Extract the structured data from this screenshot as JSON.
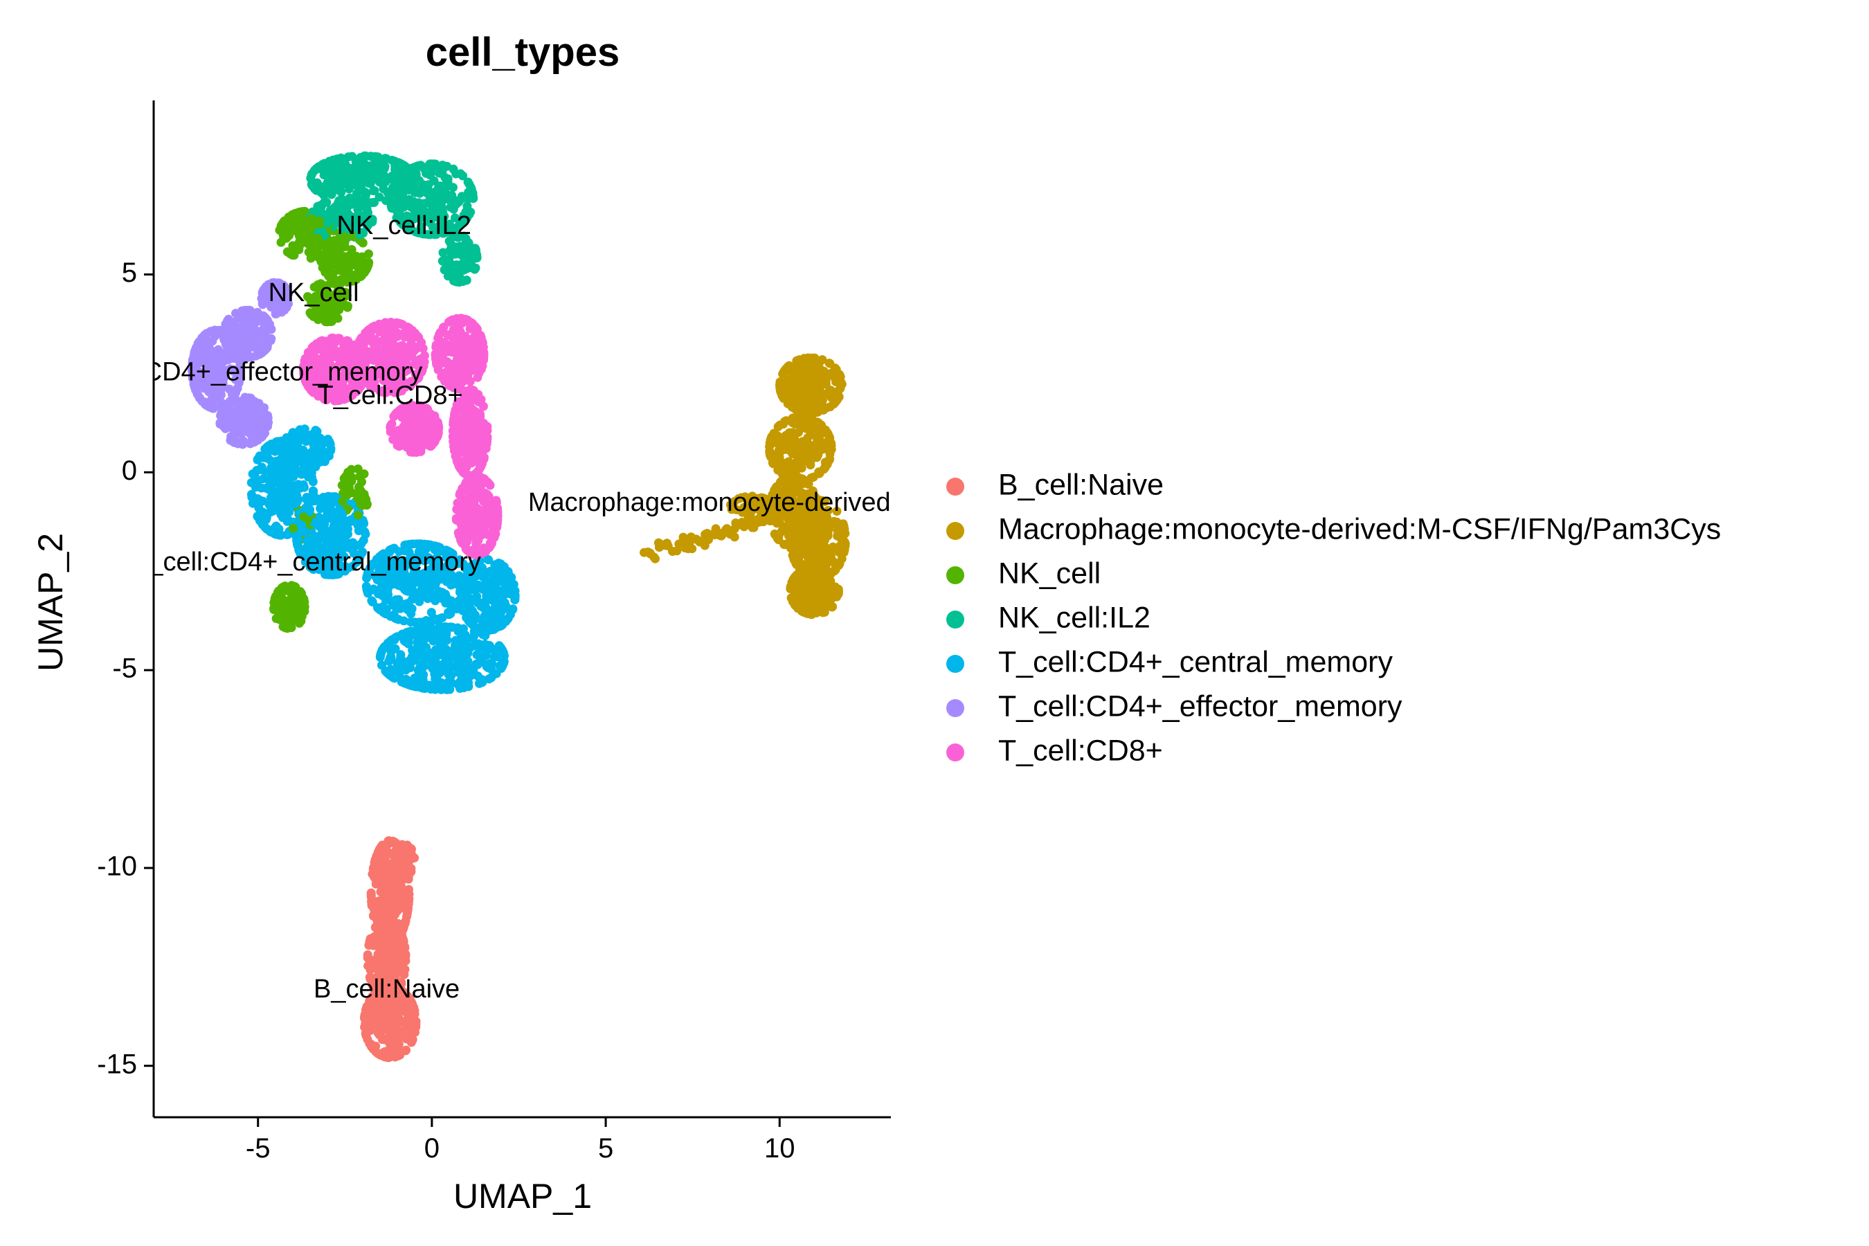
{
  "chart_data": {
    "type": "scatter",
    "title": "cell_types",
    "xlabel": "UMAP_1",
    "ylabel": "UMAP_2",
    "xlim": [
      -8,
      13.2
    ],
    "ylim": [
      -16.3,
      9.4
    ],
    "xticks": [
      -5,
      0,
      5,
      10
    ],
    "yticks": [
      5,
      0,
      -5,
      -10,
      -15
    ],
    "grid": false,
    "legend_position": "right",
    "series": [
      {
        "name": "B_cell:Naive",
        "color": "#F8766D",
        "label": "B_cell:Naive",
        "label_pos": [
          -1.3,
          -13.1
        ],
        "blobs": [
          [
            -1.2,
            -10.6,
            0.55,
            1.3,
            260
          ],
          [
            -1.3,
            -12.3,
            0.55,
            1.0,
            240
          ],
          [
            -1.2,
            -13.9,
            0.75,
            0.9,
            260
          ],
          [
            -0.8,
            -9.8,
            0.3,
            0.4,
            60
          ]
        ]
      },
      {
        "name": "Macrophage:monocyte-derived:M-CSF/IFNg/Pam3Cys",
        "color": "#C49A00",
        "label": "Macrophage:monocyte-derived:M",
        "label_pos": [
          8.4,
          -0.8
        ],
        "blobs": [
          [
            10.9,
            2.2,
            0.9,
            0.7,
            220
          ],
          [
            10.6,
            0.6,
            0.9,
            0.8,
            200
          ],
          [
            10.4,
            -1.0,
            0.7,
            0.9,
            200
          ],
          [
            11.1,
            -1.7,
            0.8,
            1.0,
            220
          ],
          [
            11.0,
            -3.0,
            0.7,
            0.6,
            160
          ],
          [
            9.2,
            -1.0,
            0.7,
            0.4,
            60
          ]
        ],
        "trail": [
          [
            6.1,
            -2.1
          ],
          [
            9.0,
            -1.4
          ],
          50
        ]
      },
      {
        "name": "NK_cell",
        "color": "#53B400",
        "label": "NK_cell",
        "label_pos": [
          -3.4,
          4.5
        ],
        "blobs": [
          [
            -3.6,
            6.0,
            0.8,
            0.6,
            150
          ],
          [
            -2.5,
            5.4,
            0.7,
            0.6,
            120
          ],
          [
            -3.0,
            4.3,
            0.6,
            0.5,
            90
          ],
          [
            -4.1,
            -3.4,
            0.45,
            0.55,
            120
          ],
          [
            -2.2,
            -0.5,
            0.4,
            0.6,
            50
          ],
          [
            -3.7,
            -1.3,
            0.3,
            0.4,
            30
          ]
        ]
      },
      {
        "name": "NK_cell:IL2",
        "color": "#00C094",
        "label": "NK_cell:IL2",
        "label_pos": [
          -0.8,
          6.2
        ],
        "blobs": [
          [
            -2.0,
            7.4,
            1.5,
            0.6,
            260
          ],
          [
            0.0,
            6.9,
            1.2,
            0.9,
            240
          ],
          [
            -2.6,
            6.4,
            0.9,
            0.5,
            100
          ],
          [
            0.8,
            5.4,
            0.5,
            0.6,
            80
          ]
        ]
      },
      {
        "name": "T_cell:CD4+_central_memory",
        "color": "#00B6EB",
        "label": "T_cell:CD4+_central_memory",
        "label_pos": [
          -3.6,
          -2.3
        ],
        "blobs": [
          [
            -4.3,
            -0.4,
            0.9,
            1.2,
            260
          ],
          [
            -2.9,
            -1.6,
            1.0,
            1.0,
            260
          ],
          [
            -0.4,
            -2.8,
            1.5,
            1.0,
            340
          ],
          [
            0.3,
            -4.7,
            1.8,
            0.8,
            340
          ],
          [
            1.6,
            -3.1,
            0.8,
            0.9,
            180
          ],
          [
            -3.6,
            0.6,
            0.7,
            0.5,
            100
          ]
        ]
      },
      {
        "name": "T_cell:CD4+_effector_memory",
        "color": "#A58AFF",
        "label": "T_cell:CD4+_effector_memory",
        "label_pos": [
          -5.4,
          2.5
        ],
        "blobs": [
          [
            -6.2,
            2.6,
            0.7,
            1.0,
            240
          ],
          [
            -5.3,
            3.5,
            0.7,
            0.6,
            160
          ],
          [
            -5.4,
            1.3,
            0.7,
            0.6,
            140
          ],
          [
            -4.5,
            4.4,
            0.4,
            0.4,
            60
          ]
        ]
      },
      {
        "name": "T_cell:CD8+",
        "color": "#FB61D7",
        "label": "T_cell:CD8+",
        "label_pos": [
          -1.2,
          1.9
        ],
        "blobs": [
          [
            -2.8,
            2.6,
            0.9,
            0.8,
            260
          ],
          [
            -1.2,
            2.9,
            1.0,
            0.9,
            260
          ],
          [
            0.8,
            3.0,
            0.7,
            0.9,
            200
          ],
          [
            1.1,
            1.0,
            0.5,
            1.1,
            220
          ],
          [
            1.3,
            -1.1,
            0.6,
            1.0,
            200
          ],
          [
            -0.5,
            1.1,
            0.7,
            0.6,
            160
          ]
        ]
      }
    ]
  }
}
